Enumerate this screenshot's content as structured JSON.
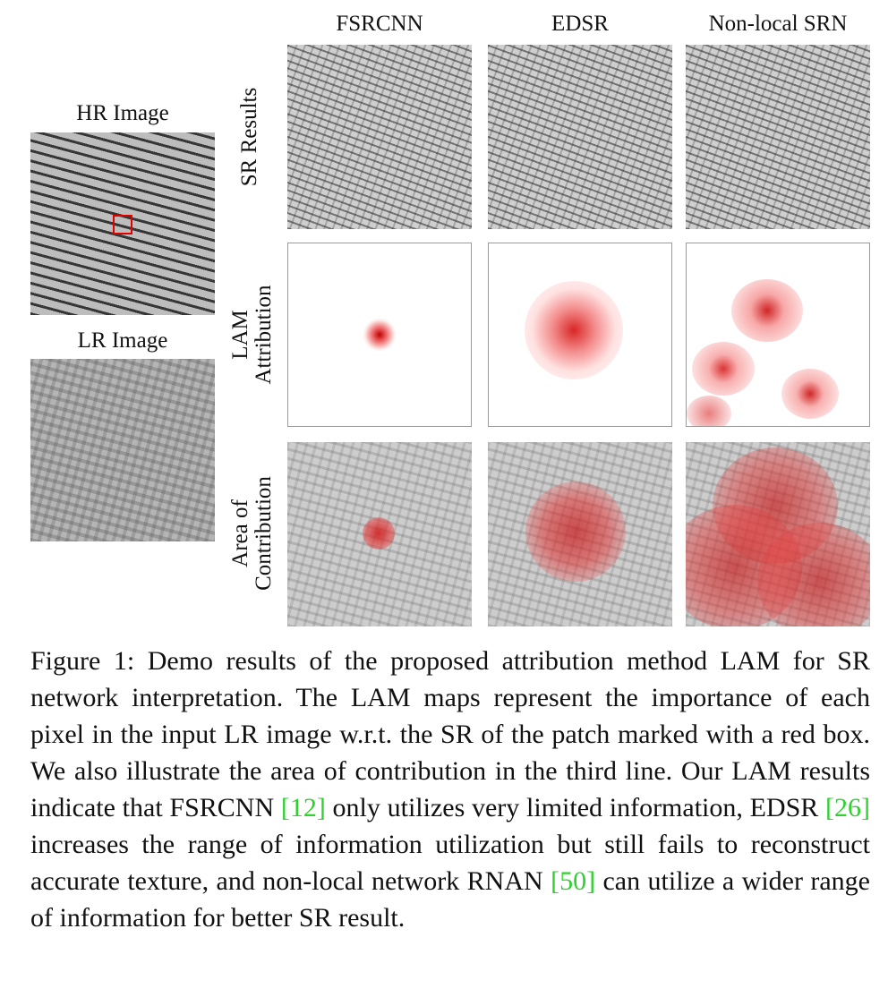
{
  "left": {
    "hr_label": "HR Image",
    "lr_label": "LR Image"
  },
  "columns": [
    "FSRCNN",
    "EDSR",
    "Non-local SRN"
  ],
  "rows": {
    "sr": "SR Results",
    "lam_line1": "LAM",
    "lam_line2": "Attribution",
    "area_line1": "Area of",
    "area_line2": "Contribution"
  },
  "caption": {
    "part1": "Figure 1: Demo results of the proposed attribution method LAM for SR network interpretation. The LAM maps represent the importance of each pixel in the input LR image w.r.t. the SR of the patch marked with a red box. We also illustrate the area of contribution in the third line. Our LAM results indicate that FSRCNN ",
    "ref1": "[12]",
    "part2": " only utilizes very limited information, EDSR ",
    "ref2": "[26]",
    "part3": " increases the range of information utilization but still fails to reconstruct accurate texture, and non-local network RNAN ",
    "ref3": "[50]",
    "part4": " can utilize a wider range of information for better SR result."
  },
  "colors": {
    "highlight_red": "#e00000",
    "citation_green": "#2ed12e"
  }
}
